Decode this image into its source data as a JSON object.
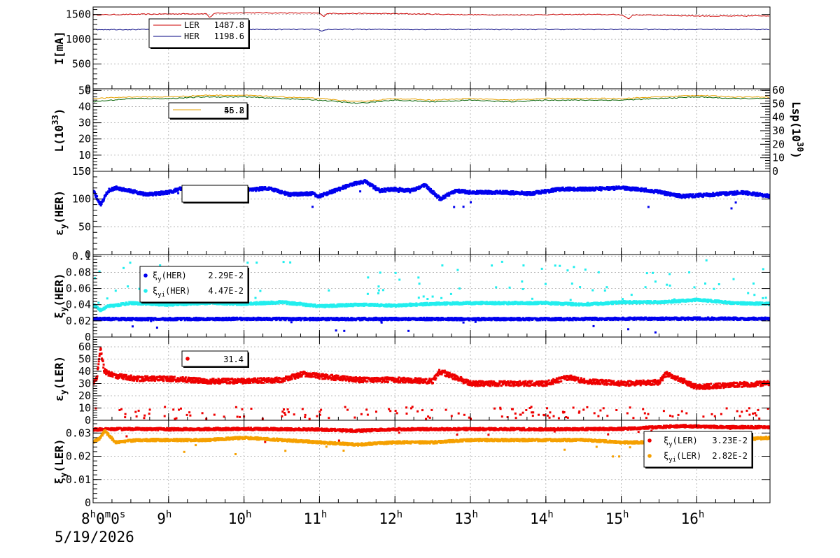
{
  "date_label": "5/19/2026",
  "x_axis": {
    "start_label": {
      "base": "8",
      "parts": [
        "h",
        "0",
        "m",
        "0",
        "s"
      ]
    },
    "hour_labels": [
      "9",
      "10",
      "11",
      "12",
      "13",
      "14",
      "15",
      "16"
    ],
    "hour_suffix": "h",
    "range_hours": [
      8,
      16.97
    ]
  },
  "chart_data": [
    {
      "type": "line",
      "panel": "current",
      "ylabel": "I[mA]",
      "ylim": [
        0,
        1650
      ],
      "yticks": [
        0,
        500,
        1000,
        1500
      ],
      "grid": true,
      "legend_placement": "top-left",
      "series": [
        {
          "name": "LER",
          "color": "#cc0000",
          "value_label": "1487.8",
          "x": [
            8.0,
            8.2,
            8.5,
            9.0,
            9.5,
            9.55,
            9.6,
            10.0,
            10.5,
            11.0,
            11.05,
            11.1,
            11.5,
            12.0,
            12.5,
            13.0,
            13.5,
            14.0,
            14.5,
            15.0,
            15.1,
            15.15,
            15.5,
            16.0,
            16.5,
            16.97
          ],
          "y": [
            1490,
            1495,
            1500,
            1510,
            1515,
            1430,
            1520,
            1535,
            1530,
            1525,
            1455,
            1520,
            1520,
            1515,
            1505,
            1495,
            1490,
            1495,
            1500,
            1495,
            1410,
            1490,
            1485,
            1470,
            1465,
            1475
          ]
        },
        {
          "name": "HER",
          "color": "#000080",
          "value_label": "1198.6",
          "x": [
            8.0,
            10.9,
            11.0,
            11.02,
            11.1,
            16.97
          ],
          "y": [
            1195,
            1198,
            1190,
            1160,
            1198,
            1198
          ]
        }
      ]
    },
    {
      "type": "line",
      "panel": "luminosity",
      "ylabel": "L(10^33)",
      "ylabel_base": "L(10",
      "ylabel_exp": "33",
      "ylabel_close": ")",
      "ylim": [
        0,
        51
      ],
      "yticks": [
        0,
        10,
        20,
        30,
        40,
        50
      ],
      "ylabel_right": "Lsp(10^30)",
      "ylabel_right_base": "Lsp(10",
      "ylabel_right_exp": "30",
      "ylabel_right_close": ")",
      "ylim_right": [
        0,
        61
      ],
      "yticks_right": [
        0,
        10,
        20,
        30,
        40,
        50,
        60
      ],
      "grid": true,
      "legend_placement": "top-left",
      "legend_values": [
        "55.8",
        "46.2"
      ],
      "series": [
        {
          "color": "#e6a000",
          "x": [
            8.0,
            8.5,
            9.0,
            9.5,
            10.0,
            10.5,
            11.0,
            11.5,
            12.0,
            12.5,
            13.0,
            13.5,
            14.0,
            14.5,
            15.0,
            15.5,
            16.0,
            16.5,
            16.97
          ],
          "y": [
            45,
            46,
            46,
            47,
            47,
            46,
            45,
            43,
            45,
            44,
            45,
            44,
            45,
            45,
            45,
            46,
            47,
            46,
            46
          ]
        },
        {
          "color": "#006000",
          "x": [
            8.0,
            8.5,
            9.0,
            9.5,
            10.0,
            10.5,
            11.0,
            11.5,
            12.0,
            12.5,
            13.0,
            13.5,
            14.0,
            14.5,
            15.0,
            15.5,
            16.0,
            16.5,
            16.97
          ],
          "y": [
            43,
            45,
            45,
            46,
            46,
            45,
            44,
            42,
            44,
            43,
            44,
            43,
            44,
            44,
            44,
            45,
            46,
            45,
            45
          ]
        }
      ]
    },
    {
      "type": "scatter",
      "panel": "emittance-her",
      "ylabel": "εy(HER)",
      "ylabel_main": "ε",
      "ylabel_sub": "y",
      "ylabel_suffix": "(HER)",
      "ylim": [
        0,
        150
      ],
      "yticks": [
        0,
        50,
        100,
        150
      ],
      "grid": true,
      "legend_placement": "top-left",
      "series": [
        {
          "color": "#0000ee",
          "x": [
            8.0,
            8.1,
            8.2,
            8.3,
            8.5,
            8.7,
            9.0,
            9.2,
            9.5,
            9.8,
            10.0,
            10.3,
            10.6,
            10.9,
            11.0,
            11.2,
            11.4,
            11.6,
            11.8,
            12.0,
            12.2,
            12.4,
            12.6,
            12.8,
            13.0,
            13.4,
            13.8,
            14.2,
            14.6,
            15.0,
            15.4,
            15.8,
            16.2,
            16.6,
            16.97
          ],
          "y": [
            115,
            90,
            115,
            120,
            115,
            108,
            112,
            120,
            118,
            112,
            115,
            120,
            108,
            110,
            105,
            115,
            125,
            132,
            115,
            118,
            115,
            125,
            100,
            115,
            112,
            112,
            110,
            118,
            118,
            120,
            115,
            105,
            108,
            112,
            105
          ]
        }
      ]
    },
    {
      "type": "scatter",
      "panel": "xi-her",
      "ylabel": "ξy(HER)",
      "ylabel_main": "ξ",
      "ylabel_sub": "y",
      "ylabel_suffix": "(HER)",
      "ylim": [
        0,
        0.102
      ],
      "yticks": [
        0,
        0.02,
        0.04,
        0.06,
        0.08,
        0.1
      ],
      "ytick_labels": [
        "0",
        "0.02",
        "0.04",
        "0.06",
        "0.08",
        "0.1"
      ],
      "grid": true,
      "legend_placement": "top-left",
      "series": [
        {
          "name_main": "ξ",
          "name_sub": "y",
          "name_suffix": "(HER)",
          "color": "#0000ee",
          "value_label": "2.29E-2",
          "x": [
            8.0,
            8.5,
            9.0,
            10.0,
            11.0,
            12.0,
            13.0,
            14.0,
            15.0,
            16.0,
            16.97
          ],
          "y": [
            0.0225,
            0.0222,
            0.0222,
            0.0225,
            0.0222,
            0.0224,
            0.0222,
            0.0222,
            0.0226,
            0.0228,
            0.0226
          ]
        },
        {
          "name_main": "ξ",
          "name_sub": "yi",
          "name_suffix": "(HER)",
          "color": "#22eeee",
          "value_label": "4.47E-2",
          "x": [
            8.0,
            8.1,
            8.2,
            8.5,
            9.0,
            9.5,
            10.0,
            10.5,
            11.0,
            11.5,
            12.0,
            12.5,
            13.0,
            13.5,
            14.0,
            14.5,
            15.0,
            15.5,
            16.0,
            16.5,
            16.97
          ],
          "y": [
            0.04,
            0.033,
            0.038,
            0.042,
            0.04,
            0.042,
            0.041,
            0.043,
            0.038,
            0.04,
            0.039,
            0.041,
            0.042,
            0.042,
            0.042,
            0.04,
            0.043,
            0.043,
            0.046,
            0.042,
            0.041
          ]
        }
      ]
    },
    {
      "type": "scatter",
      "panel": "emittance-ler",
      "ylabel": "εy(LER)",
      "ylabel_main": "ε",
      "ylabel_sub": "y",
      "ylabel_suffix": "(LER)",
      "ylim": [
        0,
        68
      ],
      "yticks": [
        0,
        10,
        20,
        30,
        40,
        50,
        60
      ],
      "grid": true,
      "legend_placement": "top-left",
      "series": [
        {
          "color": "#ee0000",
          "value_label": "31.4",
          "x": [
            8.0,
            8.05,
            8.1,
            8.15,
            8.3,
            8.6,
            9.0,
            9.5,
            10.0,
            10.5,
            10.8,
            11.0,
            11.5,
            12.0,
            12.5,
            12.6,
            13.0,
            13.5,
            14.0,
            14.3,
            14.5,
            15.0,
            15.5,
            15.6,
            16.0,
            16.5,
            16.97
          ],
          "y": [
            31,
            35,
            58,
            40,
            36,
            34,
            34,
            32,
            32,
            33,
            38,
            36,
            33,
            33,
            32,
            40,
            30,
            30,
            30,
            35,
            32,
            30,
            31,
            38,
            27,
            29,
            30
          ]
        }
      ]
    },
    {
      "type": "scatter",
      "panel": "xi-ler",
      "ylabel": "ξy(LER)",
      "ylabel_main": "ξ",
      "ylabel_sub": "y",
      "ylabel_suffix": "(LER)",
      "ylim": [
        0,
        0.0355
      ],
      "yticks": [
        0,
        0.01,
        0.02,
        0.03
      ],
      "ytick_labels": [
        "0",
        "0.01",
        "0.02",
        "0.03"
      ],
      "grid": true,
      "legend_placement": "bottom-right",
      "series": [
        {
          "name_main": "ξ",
          "name_sub": "y",
          "name_suffix": "(LER)",
          "color": "#ee0000",
          "value_label": "3.23E-2",
          "x": [
            8.0,
            8.5,
            9.0,
            10.0,
            11.0,
            11.5,
            12.0,
            13.0,
            14.0,
            15.0,
            15.8,
            16.0,
            16.5,
            16.97
          ],
          "y": [
            0.0315,
            0.0318,
            0.0316,
            0.0318,
            0.0315,
            0.031,
            0.0316,
            0.0317,
            0.0316,
            0.0318,
            0.033,
            0.0328,
            0.0325,
            0.0325
          ]
        },
        {
          "name_main": "ξ",
          "name_sub": "yi",
          "name_suffix": "(LER)",
          "color": "#f5a000",
          "value_label": "2.82E-2",
          "x": [
            8.0,
            8.1,
            8.15,
            8.3,
            8.6,
            9.0,
            9.5,
            10.0,
            10.5,
            11.0,
            11.5,
            12.0,
            12.5,
            13.0,
            13.5,
            14.0,
            14.5,
            15.0,
            15.5,
            16.0,
            16.5,
            16.97
          ],
          "y": [
            0.026,
            0.028,
            0.031,
            0.026,
            0.027,
            0.027,
            0.027,
            0.028,
            0.027,
            0.026,
            0.025,
            0.026,
            0.026,
            0.027,
            0.027,
            0.027,
            0.027,
            0.026,
            0.026,
            0.027,
            0.027,
            0.028
          ]
        }
      ]
    }
  ]
}
